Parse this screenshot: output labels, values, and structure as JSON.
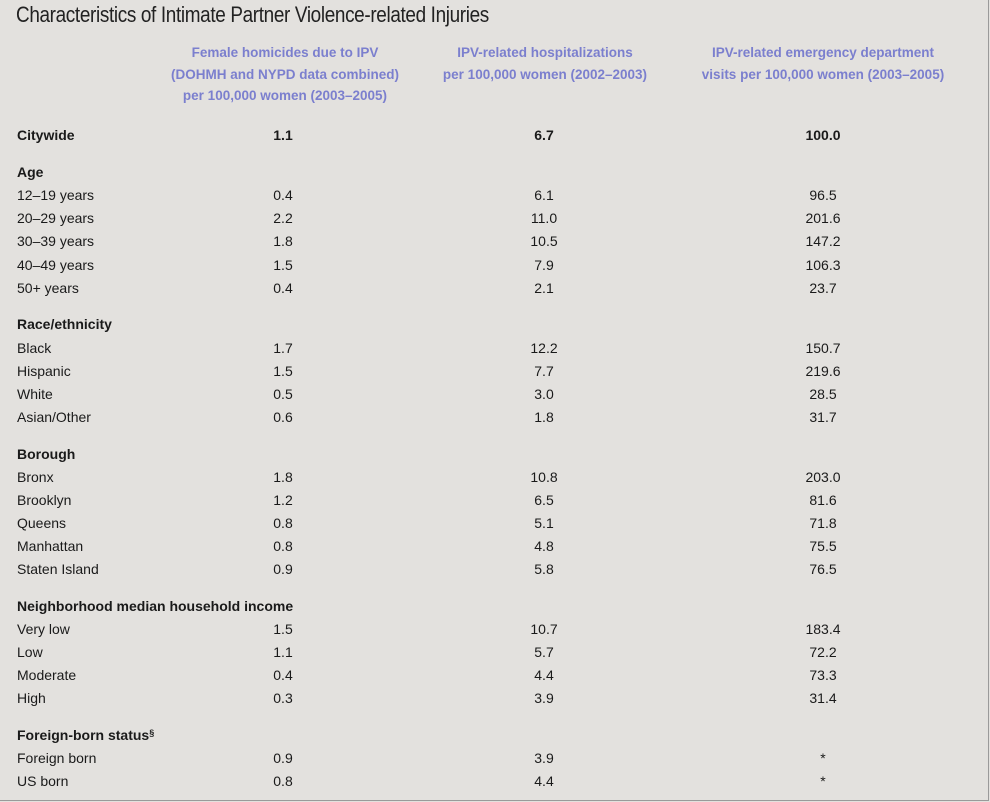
{
  "title": "Characteristics of Intimate Partner Violence-related Injuries",
  "columns": [
    [
      "Female homicides due to IPV",
      "(DOHMH and NYPD data combined)",
      "per 100,000 women (2003–2005)"
    ],
    [
      "IPV-related hospitalizations",
      "per 100,000 women (2002–2003)"
    ],
    [
      "IPV-related emergency department",
      "visits per 100,000 women (2003–2005)"
    ]
  ],
  "citywide": {
    "label": "Citywide",
    "values": [
      "1.1",
      "6.7",
      "100.0"
    ]
  },
  "sections": [
    {
      "label": "Age",
      "rows": [
        {
          "label": "12–19 years",
          "values": [
            "0.4",
            "6.1",
            "96.5"
          ]
        },
        {
          "label": "20–29 years",
          "values": [
            "2.2",
            "11.0",
            "201.6"
          ]
        },
        {
          "label": "30–39 years",
          "values": [
            "1.8",
            "10.5",
            "147.2"
          ]
        },
        {
          "label": "40–49 years",
          "values": [
            "1.5",
            "7.9",
            "106.3"
          ]
        },
        {
          "label": "50+ years",
          "values": [
            "0.4",
            "2.1",
            "23.7"
          ]
        }
      ]
    },
    {
      "label": "Race/ethnicity",
      "rows": [
        {
          "label": "Black",
          "values": [
            "1.7",
            "12.2",
            "150.7"
          ]
        },
        {
          "label": "Hispanic",
          "values": [
            "1.5",
            "7.7",
            "219.6"
          ]
        },
        {
          "label": "White",
          "values": [
            "0.5",
            "3.0",
            "28.5"
          ]
        },
        {
          "label": "Asian/Other",
          "values": [
            "0.6",
            "1.8",
            "31.7"
          ]
        }
      ]
    },
    {
      "label": "Borough",
      "rows": [
        {
          "label": "Bronx",
          "values": [
            "1.8",
            "10.8",
            "203.0"
          ]
        },
        {
          "label": "Brooklyn",
          "values": [
            "1.2",
            "6.5",
            "81.6"
          ]
        },
        {
          "label": "Queens",
          "values": [
            "0.8",
            "5.1",
            "71.8"
          ]
        },
        {
          "label": "Manhattan",
          "values": [
            "0.8",
            "4.8",
            "75.5"
          ]
        },
        {
          "label": "Staten Island",
          "values": [
            "0.9",
            "5.8",
            "76.5"
          ]
        }
      ]
    },
    {
      "label": "Neighborhood median household income",
      "rows": [
        {
          "label": "Very low",
          "values": [
            "1.5",
            "10.7",
            "183.4"
          ]
        },
        {
          "label": "Low",
          "values": [
            "1.1",
            "5.7",
            "72.2"
          ]
        },
        {
          "label": "Moderate",
          "values": [
            "0.4",
            "4.4",
            "73.3"
          ]
        },
        {
          "label": "High",
          "values": [
            "0.3",
            "3.9",
            "31.4"
          ]
        }
      ]
    },
    {
      "label": "Foreign-born status",
      "sup": "§",
      "rows": [
        {
          "label": "Foreign born",
          "values": [
            "0.9",
            "3.9",
            "*"
          ]
        },
        {
          "label": "US born",
          "values": [
            "0.8",
            "4.4",
            "*"
          ]
        }
      ]
    }
  ],
  "colors": {
    "background": "#e3e1de",
    "header_text": "#7b7fce",
    "body_text": "#1a1a1a"
  }
}
